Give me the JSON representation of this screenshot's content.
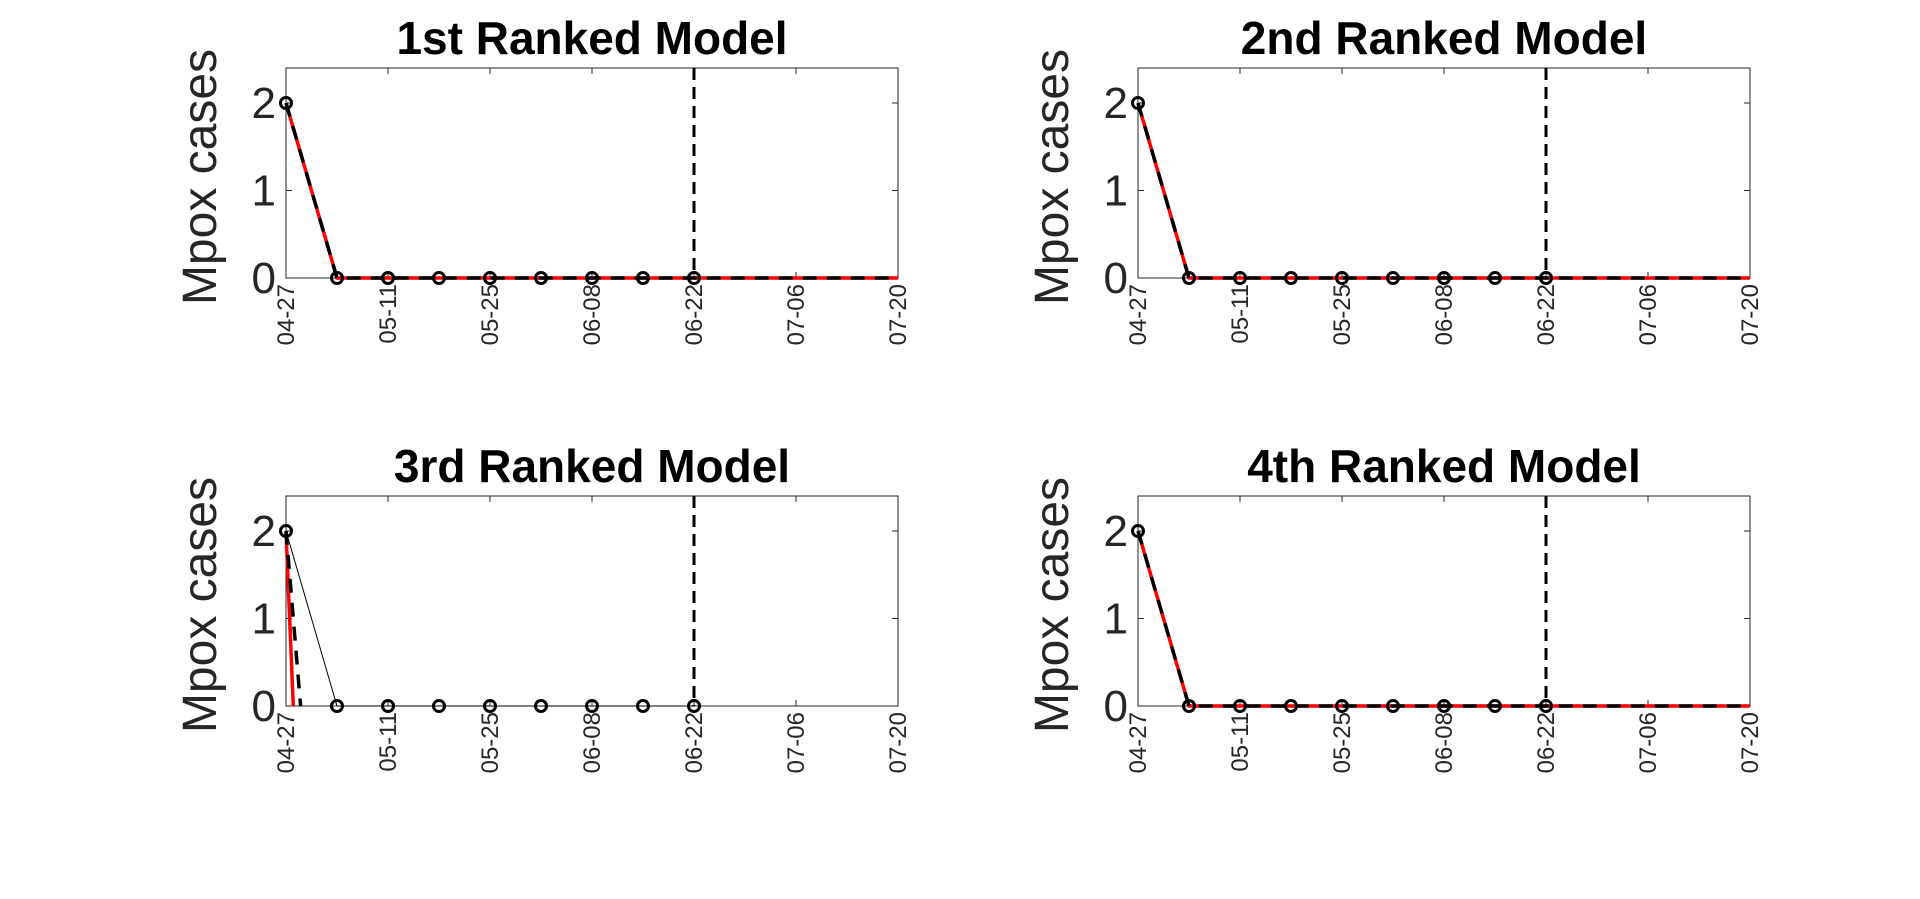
{
  "chart_data": [
    {
      "type": "line",
      "title": "1st Ranked Model",
      "ylabel": "Mpox cases",
      "xlabel": "",
      "ylim": [
        0,
        2.4
      ],
      "yticks": [
        0,
        1,
        2
      ],
      "xlim": [
        "04-27",
        "07-20"
      ],
      "xticks": [
        "04-27",
        "05-11",
        "05-25",
        "06-08",
        "06-22",
        "07-06",
        "07-20"
      ],
      "vline": "06-22",
      "observed": {
        "x": [
          "04-27",
          "05-04",
          "05-11",
          "05-18",
          "05-25",
          "06-01",
          "06-08",
          "06-15",
          "06-22"
        ],
        "y": [
          2,
          0,
          0,
          0,
          0,
          0,
          0,
          0,
          0
        ]
      },
      "fit": {
        "x": [
          "04-27",
          "05-04",
          "07-20"
        ],
        "y": [
          2,
          0,
          0
        ]
      },
      "fit_dash": {
        "x": [
          "04-27",
          "05-04",
          "07-20"
        ],
        "y": [
          2,
          0,
          0
        ]
      },
      "colors": {
        "fit": "#ff0000",
        "fit_dash": "#000000",
        "observed": "#000000",
        "vline": "#000000"
      }
    },
    {
      "type": "line",
      "title": "2nd Ranked Model",
      "ylabel": "Mpox cases",
      "xlabel": "",
      "ylim": [
        0,
        2.4
      ],
      "yticks": [
        0,
        1,
        2
      ],
      "xlim": [
        "04-27",
        "07-20"
      ],
      "xticks": [
        "04-27",
        "05-11",
        "05-25",
        "06-08",
        "06-22",
        "07-06",
        "07-20"
      ],
      "vline": "06-22",
      "observed": {
        "x": [
          "04-27",
          "05-04",
          "05-11",
          "05-18",
          "05-25",
          "06-01",
          "06-08",
          "06-15",
          "06-22"
        ],
        "y": [
          2,
          0,
          0,
          0,
          0,
          0,
          0,
          0,
          0
        ]
      },
      "fit": {
        "x": [
          "04-27",
          "05-04",
          "07-20"
        ],
        "y": [
          2,
          0,
          0
        ]
      },
      "fit_dash": {
        "x": [
          "04-27",
          "05-04",
          "07-20"
        ],
        "y": [
          2,
          0,
          0
        ]
      },
      "colors": {
        "fit": "#ff0000",
        "fit_dash": "#000000",
        "observed": "#000000",
        "vline": "#000000"
      }
    },
    {
      "type": "line",
      "title": "3rd Ranked Model",
      "ylabel": "Mpox cases",
      "xlabel": "",
      "ylim": [
        0,
        2.4
      ],
      "yticks": [
        0,
        1,
        2
      ],
      "xlim": [
        "04-27",
        "07-20"
      ],
      "xticks": [
        "04-27",
        "05-11",
        "05-25",
        "06-08",
        "06-22",
        "07-06",
        "07-20"
      ],
      "vline": "06-22",
      "observed": {
        "x": [
          "04-27",
          "05-04",
          "05-11",
          "05-18",
          "05-25",
          "06-01",
          "06-08",
          "06-15",
          "06-22"
        ],
        "y": [
          2,
          0,
          0,
          0,
          0,
          0,
          0,
          0,
          0
        ]
      },
      "fit": {
        "x": [
          "04-27",
          "04-28"
        ],
        "y": [
          2,
          0
        ]
      },
      "fit_dash": {
        "x": [
          "04-27",
          "04-29"
        ],
        "y": [
          2,
          0
        ]
      },
      "colors": {
        "fit": "#ff0000",
        "fit_dash": "#000000",
        "observed": "#000000",
        "vline": "#000000"
      }
    },
    {
      "type": "line",
      "title": "4th Ranked Model",
      "ylabel": "Mpox cases",
      "xlabel": "",
      "ylim": [
        0,
        2.4
      ],
      "yticks": [
        0,
        1,
        2
      ],
      "xlim": [
        "04-27",
        "07-20"
      ],
      "xticks": [
        "04-27",
        "05-11",
        "05-25",
        "06-08",
        "06-22",
        "07-06",
        "07-20"
      ],
      "vline": "06-22",
      "observed": {
        "x": [
          "04-27",
          "05-04",
          "05-11",
          "05-18",
          "05-25",
          "06-01",
          "06-08",
          "06-15",
          "06-22"
        ],
        "y": [
          2,
          0,
          0,
          0,
          0,
          0,
          0,
          0,
          0
        ]
      },
      "fit": {
        "x": [
          "04-27",
          "05-04",
          "07-20"
        ],
        "y": [
          2,
          0,
          0
        ]
      },
      "fit_dash": {
        "x": [
          "04-27",
          "05-04",
          "07-20"
        ],
        "y": [
          2,
          0,
          0
        ]
      },
      "colors": {
        "fit": "#ff0000",
        "fit_dash": "#000000",
        "observed": "#000000",
        "vline": "#000000"
      }
    }
  ]
}
